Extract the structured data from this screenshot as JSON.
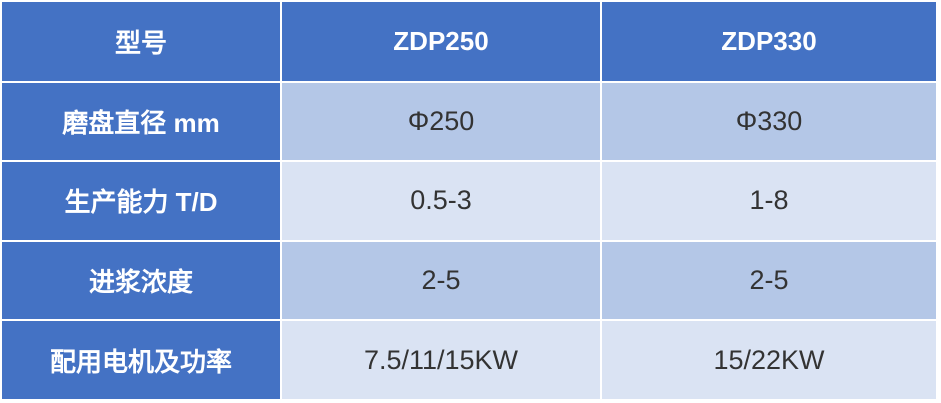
{
  "header": {
    "label": "型号",
    "models": [
      "ZDP250",
      "ZDP330"
    ]
  },
  "rows": [
    {
      "label": "磨盘直径 mm",
      "values": [
        "Φ250",
        "Φ330"
      ]
    },
    {
      "label": "生产能力 T/D",
      "values": [
        "0.5-3",
        "1-8"
      ]
    },
    {
      "label": "进浆浓度",
      "values": [
        "2-5",
        "2-5"
      ]
    },
    {
      "label": "配用电机及功率",
      "values": [
        "7.5/11/15KW",
        "15/22KW"
      ]
    }
  ],
  "colors": {
    "header": "#4472c4",
    "row_dark": "#b4c7e7",
    "row_light": "#dae3f3"
  }
}
